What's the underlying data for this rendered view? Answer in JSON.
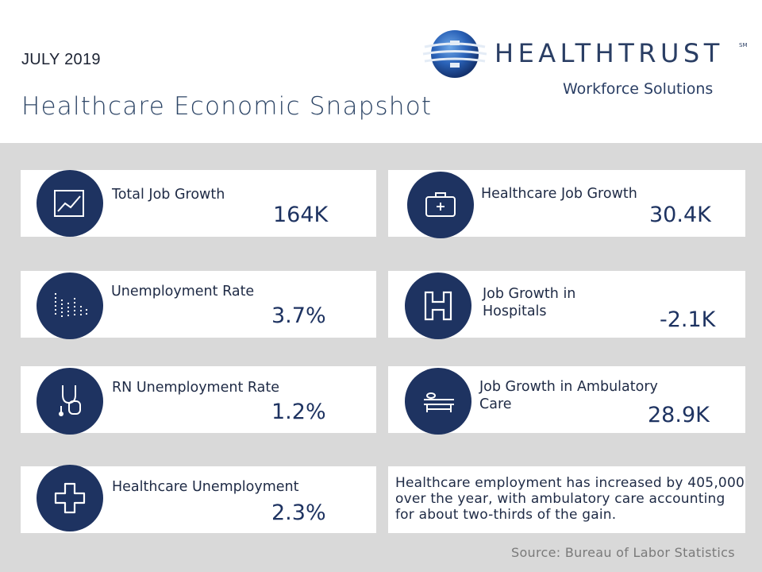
{
  "header": {
    "date": "JULY 2019",
    "title": "Healthcare Economic Snapshot",
    "logo": {
      "brand": "HEALTHTRUST",
      "trademark": "SM",
      "subtitle": "Workforce Solutions"
    }
  },
  "cards": [
    {
      "label": "Total Job Growth",
      "value": "164K",
      "icon": "chart-icon"
    },
    {
      "label": "Healthcare Job Growth",
      "value": "30.4K",
      "icon": "medical-bag-icon"
    },
    {
      "label": "Unemployment Rate",
      "value": "3.7%",
      "icon": "bars-icon"
    },
    {
      "label_line1": "Job Growth in",
      "label_line2": "Hospitals",
      "value": "-2.1K",
      "icon": "hospital-icon"
    },
    {
      "label": "RN Unemployment Rate",
      "value": "1.2%",
      "icon": "stethoscope-icon"
    },
    {
      "label_line1": "Job Growth in Ambulatory",
      "label_line2": "Care",
      "value": "28.9K",
      "icon": "bed-icon"
    },
    {
      "label": "Healthcare Unemployment",
      "value": "2.3%",
      "icon": "medical-cross-icon"
    }
  ],
  "note": "Healthcare employment has increased by 405,000 over the year, with ambulatory care accounting for about two-thirds of the gain.",
  "source": "Source: Bureau of Labor Statistics",
  "colors": {
    "navy": "#1e3361",
    "panel": "#d9d9d9",
    "card": "#ffffff"
  }
}
